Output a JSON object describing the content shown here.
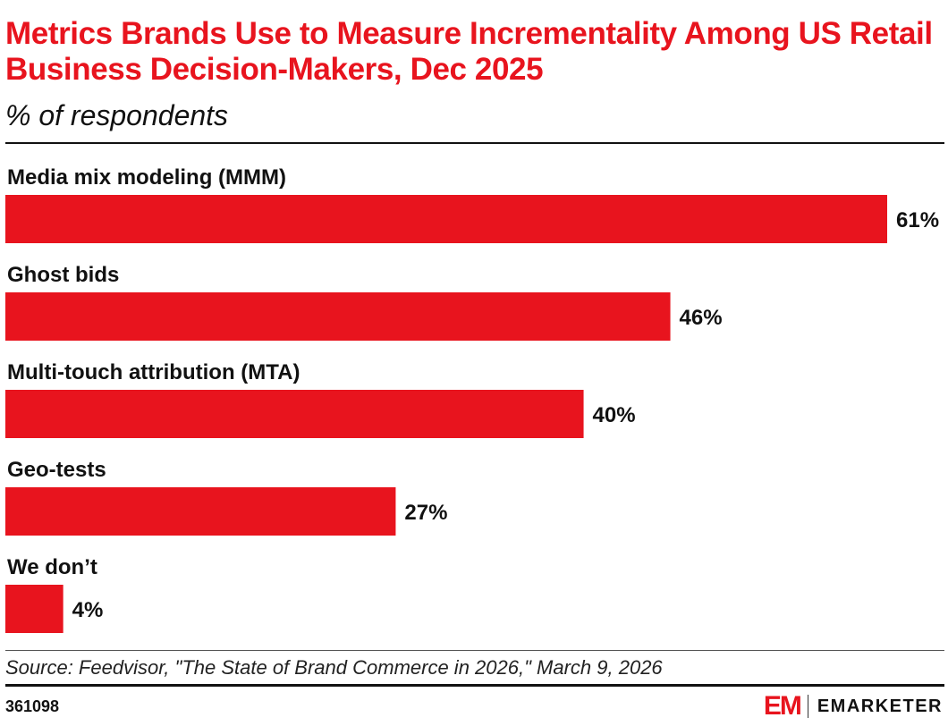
{
  "header": {
    "title": "Metrics Brands Use to Measure Incrementality Among US Retail Business Decision-Makers, Dec 2025",
    "subtitle": "% of respondents"
  },
  "chart_data": {
    "type": "bar",
    "orientation": "horizontal",
    "categories": [
      "Media mix modeling (MMM)",
      "Ghost bids",
      "Multi-touch attribution (MTA)",
      "Geo-tests",
      "We don’t"
    ],
    "values": [
      61,
      46,
      40,
      27,
      4
    ],
    "value_labels": [
      "61%",
      "46%",
      "40%",
      "27%",
      "4%"
    ],
    "title": "Metrics Brands Use to Measure Incrementality Among US Retail Business Decision-Makers, Dec 2025",
    "subtitle": "% of respondents",
    "xlim": [
      0,
      61
    ],
    "grid": false,
    "bar_color": "#e8141e"
  },
  "footer": {
    "source": "Source: Feedvisor, \"The State of Brand Commerce in 2026,\" March 9, 2026",
    "chart_id": "361098",
    "logo_mark": "EM",
    "logo_text": "EMARKETER"
  },
  "colors": {
    "accent": "#e8141e",
    "text": "#111111"
  }
}
